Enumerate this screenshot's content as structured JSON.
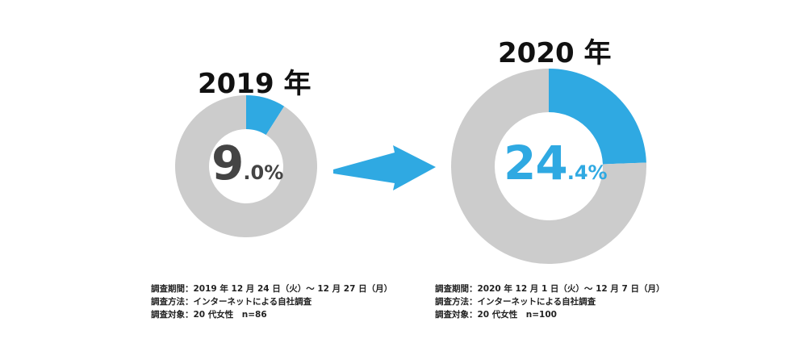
{
  "colors": {
    "accent": "#2fa9e2",
    "remainder": "#cccccc",
    "value_2019": "#444444",
    "value_2020": "#2fa9e2"
  },
  "chart_data": [
    {
      "type": "pie",
      "title": "2019 年",
      "values": [
        9.0,
        91.0
      ],
      "label": {
        "int": "9",
        "dec": ".0",
        "unit": "%"
      },
      "notes": [
        "調査期間：2019 年 12 月 24 日（火）～ 12 月 27 日（月）",
        "調査方法：インターネットによる自社調査",
        "調査対象：20 代女性　n=86"
      ]
    },
    {
      "type": "pie",
      "title": "2020 年",
      "values": [
        24.4,
        75.6
      ],
      "label": {
        "int": "24",
        "dec": ".4",
        "unit": "%"
      },
      "notes": [
        "調査期間：2020 年 12 月 1 日（火）～ 12 月 7 日（月）",
        "調査方法：インターネットによる自社調査",
        "調査対象：20 代女性　n=100"
      ]
    }
  ]
}
